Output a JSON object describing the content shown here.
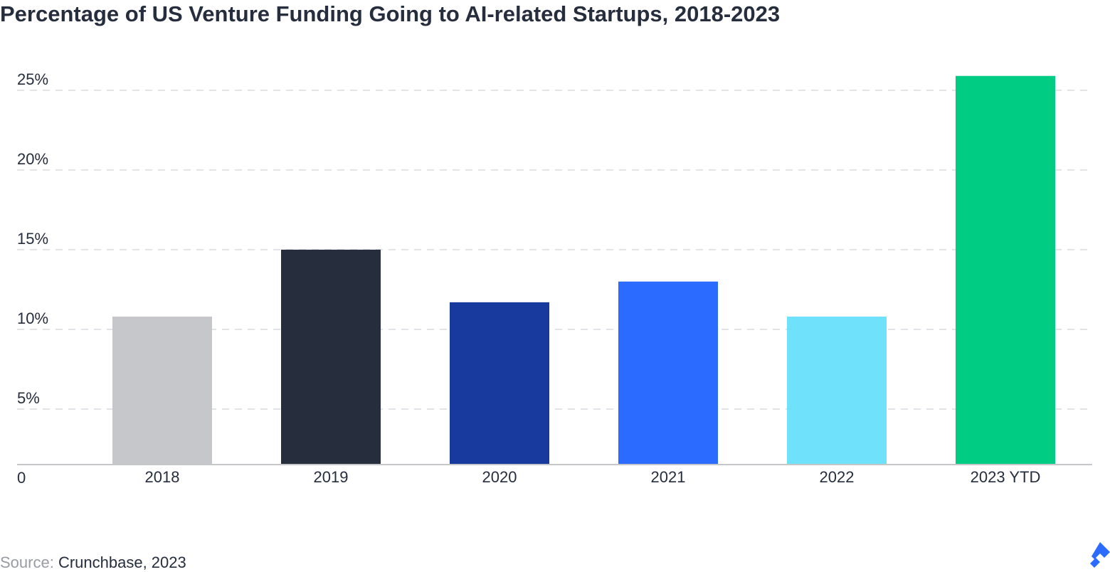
{
  "chart_data": {
    "type": "bar",
    "title": "Percentage of US Venture Funding Going to AI-related Startups, 2018-2023",
    "categories": [
      "2018",
      "2019",
      "2020",
      "2021",
      "2022",
      "2023 YTD"
    ],
    "values": [
      10.8,
      15,
      11.7,
      13,
      10.8,
      25.9
    ],
    "colors": [
      "#c6c7ca",
      "#262d3c",
      "#183a9e",
      "#2b6bff",
      "#6fe1fb",
      "#00cc83"
    ],
    "ylim": [
      0,
      26.2
    ],
    "yticks": [
      0,
      {
        "value": 5,
        "label": "5%"
      },
      {
        "value": 10,
        "label": "10%"
      },
      {
        "value": 15,
        "label": "15%"
      },
      {
        "value": 20,
        "label": "20%"
      },
      {
        "value": 25,
        "label": "25%"
      }
    ],
    "grid": true,
    "source_label": "Source:",
    "source": "Crunchbase, 2023"
  }
}
